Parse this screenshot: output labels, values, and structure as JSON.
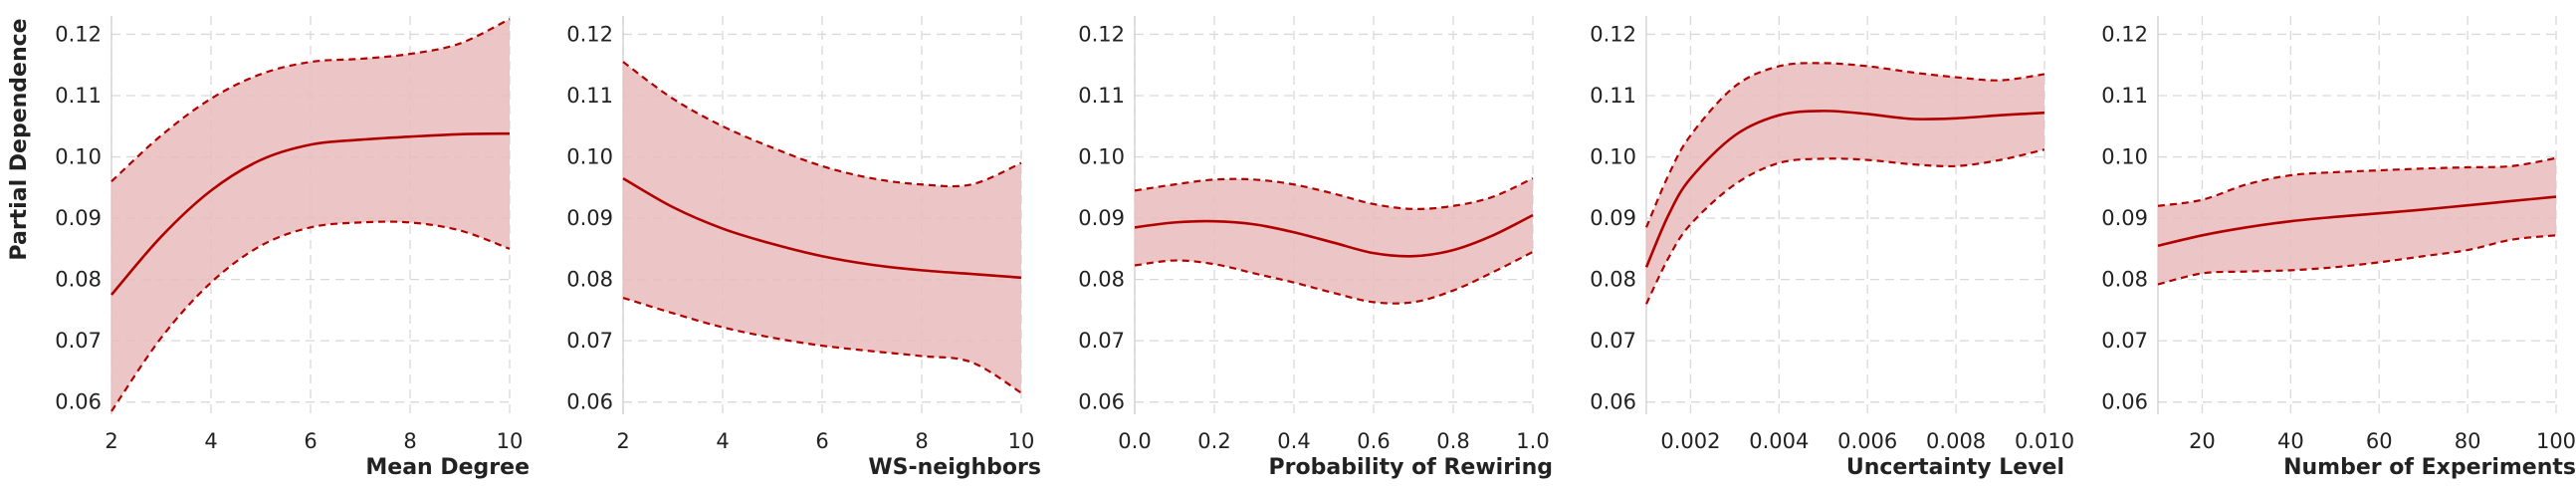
{
  "colors": {
    "line": "#b00000",
    "band_fill": "#e9bcbc",
    "grid": "#d9d9d9",
    "axis_spine": "#cccccc",
    "text": "#222222"
  },
  "ylabel": "Partial Dependence",
  "chart_data": [
    {
      "type": "line",
      "xlabel": "Mean Degree",
      "ylabel": "Partial Dependence",
      "xlim": [
        2,
        10
      ],
      "ylim": [
        0.058,
        0.123
      ],
      "x_ticks": [
        2,
        4,
        6,
        8,
        10
      ],
      "x_tick_labels": [
        "2",
        "4",
        "6",
        "8",
        "10"
      ],
      "y_ticks": [
        0.06,
        0.07,
        0.08,
        0.09,
        0.1,
        0.11,
        0.12
      ],
      "y_tick_labels": [
        "0.06",
        "0.07",
        "0.08",
        "0.09",
        "0.10",
        "0.11",
        "0.12"
      ],
      "grid": true,
      "series": [
        {
          "role": "mean",
          "style": "solid",
          "x": [
            2,
            3,
            4,
            5,
            6,
            7,
            8,
            9,
            10
          ],
          "y": [
            0.0775,
            0.087,
            0.0945,
            0.0995,
            0.102,
            0.1028,
            0.1033,
            0.1037,
            0.1038
          ]
        },
        {
          "role": "upper",
          "style": "dashed",
          "x": [
            2,
            3,
            4,
            5,
            6,
            7,
            8,
            9,
            10
          ],
          "y": [
            0.096,
            0.1035,
            0.1095,
            0.1135,
            0.1155,
            0.116,
            0.1168,
            0.1185,
            0.1225
          ]
        },
        {
          "role": "lower",
          "style": "dashed",
          "x": [
            2,
            3,
            4,
            5,
            6,
            7,
            8,
            9,
            10
          ],
          "y": [
            0.0585,
            0.0705,
            0.0795,
            0.0855,
            0.0885,
            0.0893,
            0.0893,
            0.088,
            0.085
          ]
        }
      ]
    },
    {
      "type": "line",
      "xlabel": "WS-neighbors",
      "xlim": [
        2,
        10
      ],
      "ylim": [
        0.058,
        0.123
      ],
      "x_ticks": [
        2,
        4,
        6,
        8,
        10
      ],
      "x_tick_labels": [
        "2",
        "4",
        "6",
        "8",
        "10"
      ],
      "y_ticks": [
        0.06,
        0.07,
        0.08,
        0.09,
        0.1,
        0.11,
        0.12
      ],
      "y_tick_labels": [
        "0.06",
        "0.07",
        "0.08",
        "0.09",
        "0.10",
        "0.11",
        "0.12"
      ],
      "grid": true,
      "series": [
        {
          "role": "mean",
          "style": "solid",
          "x": [
            2,
            3,
            4,
            5,
            6,
            7,
            8,
            9,
            10
          ],
          "y": [
            0.0965,
            0.0918,
            0.0883,
            0.0858,
            0.0838,
            0.0824,
            0.0815,
            0.0809,
            0.0803
          ]
        },
        {
          "role": "upper",
          "style": "dashed",
          "x": [
            2,
            3,
            4,
            5,
            6,
            7,
            8,
            9,
            10
          ],
          "y": [
            0.1155,
            0.1095,
            0.105,
            0.1015,
            0.0985,
            0.0965,
            0.0955,
            0.0955,
            0.099
          ]
        },
        {
          "role": "lower",
          "style": "dashed",
          "x": [
            2,
            3,
            4,
            5,
            6,
            7,
            8,
            9,
            10
          ],
          "y": [
            0.077,
            0.0745,
            0.0722,
            0.0705,
            0.0692,
            0.0683,
            0.0675,
            0.0665,
            0.0615
          ]
        }
      ]
    },
    {
      "type": "line",
      "xlabel": "Probability of Rewiring",
      "xlim": [
        0.0,
        1.0
      ],
      "ylim": [
        0.058,
        0.123
      ],
      "x_ticks": [
        0.0,
        0.2,
        0.4,
        0.6,
        0.8,
        1.0
      ],
      "x_tick_labels": [
        "0.0",
        "0.2",
        "0.4",
        "0.6",
        "0.8",
        "1.0"
      ],
      "y_ticks": [
        0.06,
        0.07,
        0.08,
        0.09,
        0.1,
        0.11,
        0.12
      ],
      "y_tick_labels": [
        "0.06",
        "0.07",
        "0.08",
        "0.09",
        "0.10",
        "0.11",
        "0.12"
      ],
      "grid": true,
      "series": [
        {
          "role": "mean",
          "style": "solid",
          "x": [
            0.0,
            0.1,
            0.2,
            0.3,
            0.4,
            0.5,
            0.6,
            0.7,
            0.8,
            0.9,
            1.0
          ],
          "y": [
            0.0885,
            0.0893,
            0.0895,
            0.089,
            0.0877,
            0.086,
            0.0843,
            0.0838,
            0.0848,
            0.0872,
            0.0905
          ]
        },
        {
          "role": "upper",
          "style": "dashed",
          "x": [
            0.0,
            0.1,
            0.2,
            0.3,
            0.4,
            0.5,
            0.6,
            0.7,
            0.8,
            0.9,
            1.0
          ],
          "y": [
            0.0945,
            0.0955,
            0.0963,
            0.0963,
            0.0955,
            0.094,
            0.0923,
            0.0915,
            0.092,
            0.0935,
            0.0965
          ]
        },
        {
          "role": "lower",
          "style": "dashed",
          "x": [
            0.0,
            0.1,
            0.2,
            0.3,
            0.4,
            0.5,
            0.6,
            0.7,
            0.8,
            0.9,
            1.0
          ],
          "y": [
            0.0823,
            0.0831,
            0.0825,
            0.081,
            0.0795,
            0.0778,
            0.0763,
            0.0763,
            0.0782,
            0.0812,
            0.0845
          ]
        }
      ]
    },
    {
      "type": "line",
      "xlabel": "Uncertainty Level",
      "xlim": [
        0.001,
        0.01
      ],
      "ylim": [
        0.058,
        0.123
      ],
      "x_ticks": [
        0.002,
        0.004,
        0.006,
        0.008,
        0.01
      ],
      "x_tick_labels": [
        "0.002",
        "0.004",
        "0.006",
        "0.008",
        "0.010"
      ],
      "y_ticks": [
        0.06,
        0.07,
        0.08,
        0.09,
        0.1,
        0.11,
        0.12
      ],
      "y_tick_labels": [
        "0.06",
        "0.07",
        "0.08",
        "0.09",
        "0.10",
        "0.11",
        "0.12"
      ],
      "grid": true,
      "series": [
        {
          "role": "mean",
          "style": "solid",
          "x": [
            0.001,
            0.0015,
            0.002,
            0.003,
            0.004,
            0.005,
            0.006,
            0.007,
            0.008,
            0.009,
            0.01
          ],
          "y": [
            0.082,
            0.0905,
            0.0965,
            0.1035,
            0.1068,
            0.1075,
            0.107,
            0.1062,
            0.1063,
            0.1068,
            0.1072
          ]
        },
        {
          "role": "upper",
          "style": "dashed",
          "x": [
            0.001,
            0.0015,
            0.002,
            0.003,
            0.004,
            0.005,
            0.006,
            0.007,
            0.008,
            0.009,
            0.01
          ],
          "y": [
            0.0885,
            0.097,
            0.1035,
            0.1115,
            0.1148,
            0.1153,
            0.1148,
            0.1138,
            0.113,
            0.1125,
            0.1135
          ]
        },
        {
          "role": "lower",
          "style": "dashed",
          "x": [
            0.001,
            0.0015,
            0.002,
            0.003,
            0.004,
            0.005,
            0.006,
            0.007,
            0.008,
            0.009,
            0.01
          ],
          "y": [
            0.076,
            0.0835,
            0.089,
            0.0955,
            0.099,
            0.0997,
            0.0995,
            0.0988,
            0.0985,
            0.0995,
            0.1012
          ]
        }
      ]
    },
    {
      "type": "line",
      "xlabel": "Number of Experiments",
      "xlim": [
        10,
        100
      ],
      "ylim": [
        0.058,
        0.123
      ],
      "x_ticks": [
        20,
        40,
        60,
        80,
        100
      ],
      "x_tick_labels": [
        "20",
        "40",
        "60",
        "80",
        "100"
      ],
      "y_ticks": [
        0.06,
        0.07,
        0.08,
        0.09,
        0.1,
        0.11,
        0.12
      ],
      "y_tick_labels": [
        "0.06",
        "0.07",
        "0.08",
        "0.09",
        "0.10",
        "0.11",
        "0.12"
      ],
      "grid": true,
      "series": [
        {
          "role": "mean",
          "style": "solid",
          "x": [
            10,
            20,
            30,
            40,
            50,
            60,
            70,
            80,
            90,
            100
          ],
          "y": [
            0.0855,
            0.0872,
            0.0885,
            0.0895,
            0.0902,
            0.0908,
            0.0914,
            0.0921,
            0.0928,
            0.0935
          ]
        },
        {
          "role": "upper",
          "style": "dashed",
          "x": [
            10,
            20,
            30,
            40,
            50,
            60,
            70,
            80,
            90,
            100
          ],
          "y": [
            0.092,
            0.093,
            0.0955,
            0.097,
            0.0975,
            0.0978,
            0.0981,
            0.0983,
            0.0985,
            0.0998
          ]
        },
        {
          "role": "lower",
          "style": "dashed",
          "x": [
            10,
            20,
            30,
            40,
            50,
            60,
            70,
            80,
            90,
            100
          ],
          "y": [
            0.0792,
            0.081,
            0.0813,
            0.0815,
            0.082,
            0.0828,
            0.0838,
            0.0848,
            0.0865,
            0.0872
          ]
        }
      ]
    }
  ]
}
